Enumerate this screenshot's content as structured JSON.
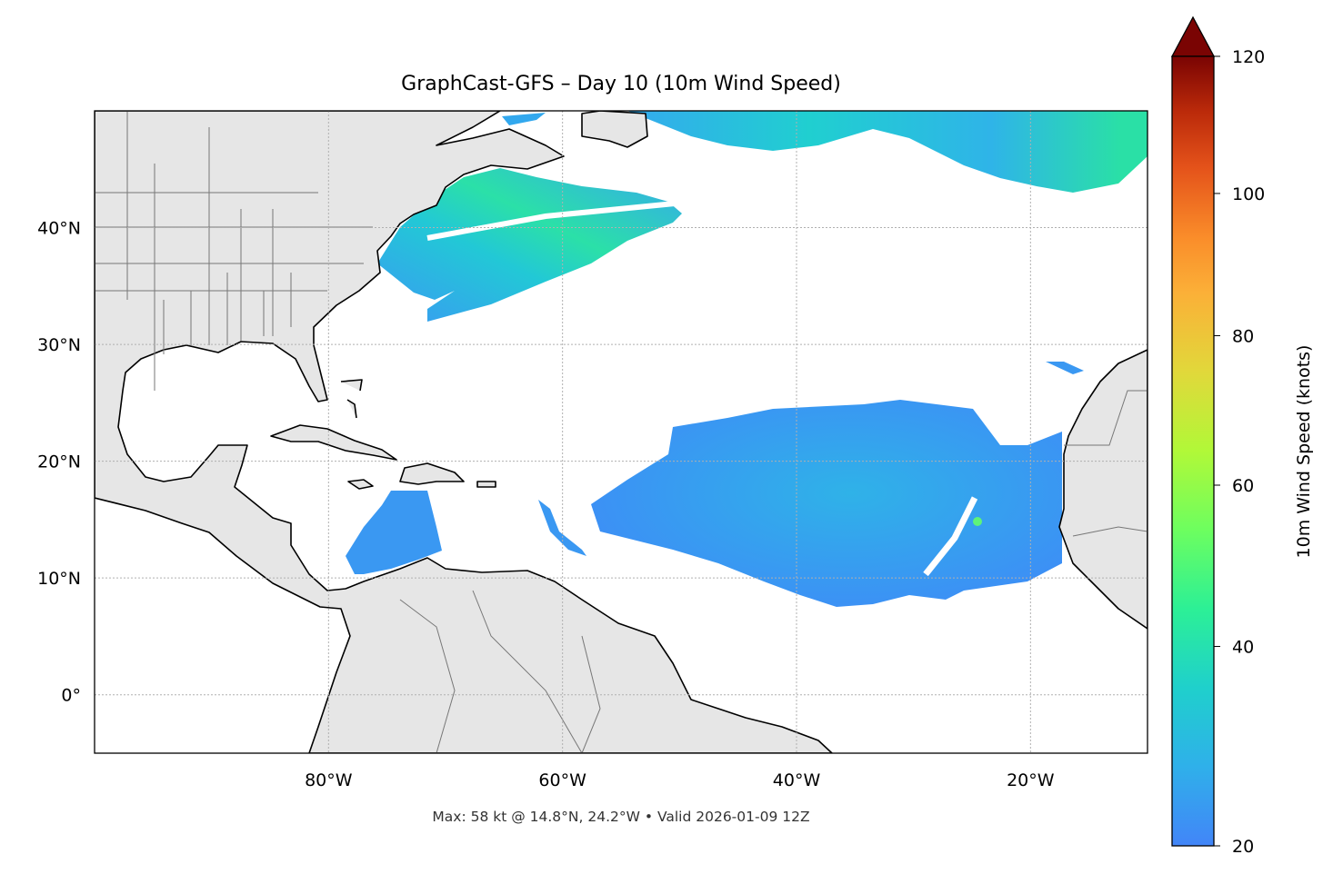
{
  "title": "GraphCast-GFS – Day 10 (10m Wind Speed)",
  "footer": "Max: 58 kt @ 14.8°N, 24.2°W • Valid 2026-01-09 12Z",
  "map": {
    "projection": "PlateCarree",
    "lon_range": [
      -100,
      -10
    ],
    "lat_range": [
      -5,
      50
    ],
    "lon_ticks": [
      -80,
      -60,
      -40,
      -20
    ],
    "lon_tick_labels": [
      "80°W",
      "60°W",
      "40°W",
      "20°W"
    ],
    "lat_ticks": [
      0,
      10,
      20,
      30,
      40
    ],
    "lat_tick_labels": [
      "0°",
      "10°N",
      "20°N",
      "30°N",
      "40°N"
    ],
    "gridlines": true,
    "land_color": "#e6e6e6",
    "ocean_color": "#ffffff",
    "max_wind": {
      "value_kt": 58,
      "lat": 14.8,
      "lon": -24.2
    }
  },
  "colorbar": {
    "label": "10m Wind Speed (knots)",
    "min": 20,
    "max": 120,
    "ticks": [
      20,
      40,
      60,
      80,
      100,
      120
    ],
    "tick_labels": [
      "20",
      "40",
      "60",
      "80",
      "100",
      "120"
    ],
    "extend": "max",
    "colormap": "turbo",
    "orientation": "vertical",
    "placement": "right"
  }
}
